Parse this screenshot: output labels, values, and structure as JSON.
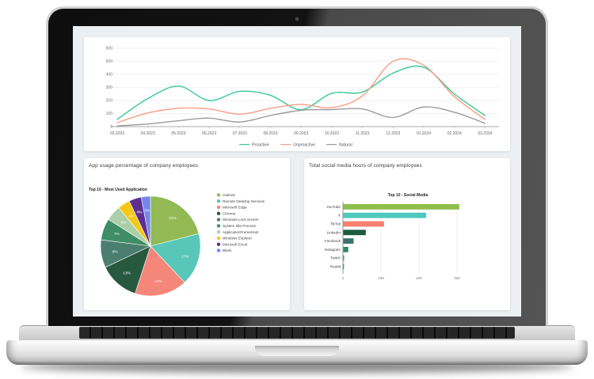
{
  "device": {
    "type": "laptop-mockup",
    "bezel_color": "#141414",
    "body_color": "#e0e0e0",
    "screen_background": "#edf0f3"
  },
  "chart_data": [
    {
      "type": "line",
      "title": "",
      "x": [
        "03.2023",
        "04.2023",
        "05.2023",
        "06.2023",
        "07.2023",
        "08.2023",
        "09.2023",
        "10.2023",
        "11.2023",
        "12.2023",
        "01.2024",
        "02.2024",
        "03.2024"
      ],
      "series": [
        {
          "name": "Proactive",
          "color": "#38c797",
          "values": [
            55,
            215,
            310,
            200,
            270,
            240,
            130,
            255,
            265,
            410,
            455,
            250,
            85
          ]
        },
        {
          "name": "Unproactive",
          "color": "#f99d84",
          "values": [
            30,
            105,
            140,
            135,
            95,
            140,
            170,
            145,
            235,
            500,
            470,
            230,
            55
          ]
        },
        {
          "name": "Natural",
          "color": "#9b9b9b",
          "values": [
            5,
            20,
            45,
            65,
            35,
            85,
            125,
            130,
            135,
            70,
            150,
            110,
            25
          ]
        }
      ],
      "ylim": [
        0,
        600
      ],
      "yticks": [
        0,
        100,
        200,
        300,
        400,
        500,
        600
      ],
      "grid": true,
      "legend_position": "bottom"
    },
    {
      "type": "pie",
      "title": "App usage percentage of company employees",
      "subtitle": "Top 10 - Most Used Application",
      "labels": [
        "Outlook",
        "Remote Desktop Services",
        "Microsoft Edge",
        "Chrome",
        "Windows Lock Screen",
        "System Idle Process",
        "ApplicationFrameHost",
        "Windows Explorer",
        "Microsoft Excel",
        "Blank"
      ],
      "values": [
        21,
        17,
        17,
        13,
        9,
        7,
        5,
        4,
        4,
        3
      ],
      "value_labels": [
        "21%",
        "17%",
        "17%",
        "13%",
        "9%",
        "7%",
        "5%",
        "4%",
        "4%",
        "3%"
      ],
      "colors": [
        "#93ba55",
        "#58c7b9",
        "#f5867a",
        "#27593e",
        "#4b7e6f",
        "#3e8d66",
        "#accfa9",
        "#f5c71a",
        "#5d2f92",
        "#7488ea"
      ],
      "legend_position": "right",
      "start_angle_deg": 0,
      "direction": "clockwise"
    },
    {
      "type": "bar",
      "orientation": "horizontal",
      "title": "Total social media hours of company employees",
      "subtitle": "Top 10 - Social Media",
      "categories": [
        "YouTube",
        "X",
        "TikTok",
        "LinkedIn",
        "Facebook",
        "Instagram",
        "Twitch",
        "Reddit"
      ],
      "values": [
        305,
        218,
        107,
        59,
        27,
        13,
        2,
        1
      ],
      "colors": [
        "#8ebe4b",
        "#50c8be",
        "#f87e6e",
        "#1d5a3e",
        "#3c7366",
        "#2f8968",
        "#2f8968",
        "#2f8968"
      ],
      "xticks": [
        0,
        100,
        200,
        300
      ],
      "xlim": [
        0,
        320
      ],
      "grid": true
    }
  ]
}
